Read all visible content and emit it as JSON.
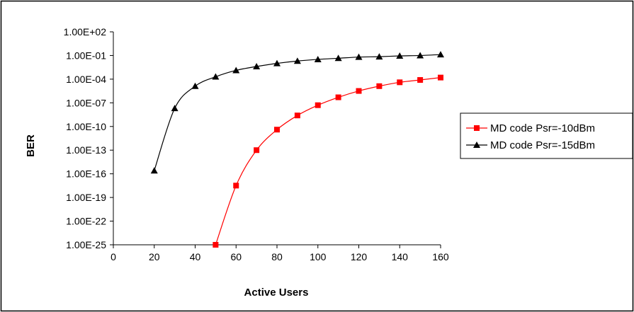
{
  "chart_data": {
    "type": "line",
    "title": "",
    "xlabel": "Active Users",
    "ylabel": "BER",
    "xlim": [
      0,
      160
    ],
    "x_ticks": [
      0,
      20,
      40,
      60,
      80,
      100,
      120,
      140,
      160
    ],
    "y_scale": "log",
    "ylim_exponent": [
      -25,
      2
    ],
    "y_tick_labels": [
      "1.00E+02",
      "1.00E-01",
      "1.00E-04",
      "1.00E-07",
      "1.00E-10",
      "1.00E-13",
      "1.00E-16",
      "1.00E-19",
      "1.00E-22",
      "1.00E-25"
    ],
    "grid": false,
    "legend_position": "right",
    "series": [
      {
        "name": "MD code Psr=-10dBm",
        "color": "#ff0000",
        "marker": "square",
        "x": [
          50,
          60,
          70,
          80,
          90,
          100,
          110,
          120,
          130,
          140,
          150,
          160
        ],
        "y": [
          "1.0E-25",
          "3.2E-18",
          "1.0E-13",
          "4.0E-11",
          "2.5E-09",
          "5.0E-08",
          "5.0E-07",
          "3.2E-06",
          "1.3E-05",
          "4.0E-05",
          "7.9E-05",
          "1.6E-04"
        ]
      },
      {
        "name": "MD code Psr=-15dBm",
        "color": "#000000",
        "marker": "triangle",
        "x": [
          20,
          30,
          40,
          50,
          60,
          70,
          80,
          90,
          100,
          110,
          120,
          130,
          140,
          150,
          160
        ],
        "y": [
          "2.5E-16",
          "2.0E-08",
          "1.3E-05",
          "2.0E-04",
          "1.3E-03",
          "4.0E-03",
          "1.0E-02",
          "2.0E-02",
          "3.2E-02",
          "4.5E-02",
          "6.3E-02",
          "7.1E-02",
          "8.9E-02",
          "1.0E-01",
          "1.3E-01"
        ]
      }
    ]
  }
}
